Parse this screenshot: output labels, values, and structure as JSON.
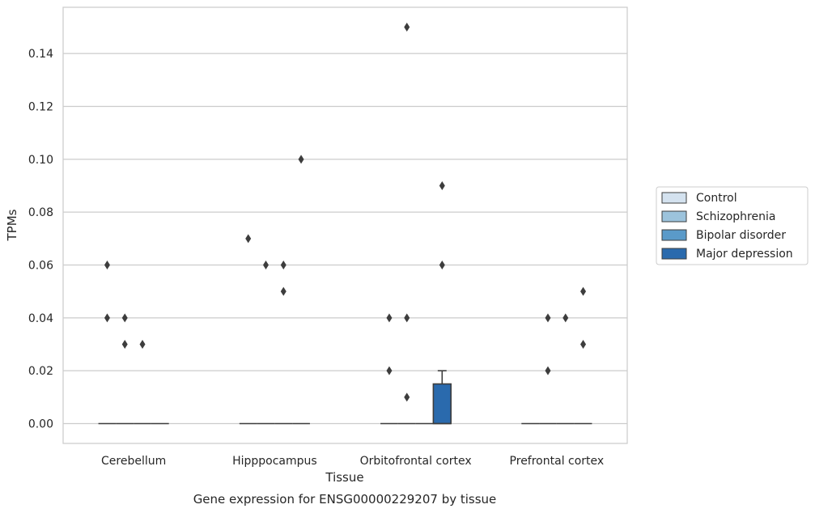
{
  "chart_data": {
    "type": "box",
    "xlabel": "Tissue",
    "ylabel": "TPMs",
    "caption": "Gene expression for ENSG00000229207 by tissue",
    "categories": [
      "Cerebellum",
      "Hipppocampus",
      "Orbitofrontal cortex",
      "Prefrontal cortex"
    ],
    "yticks": [
      "0.00",
      "0.02",
      "0.04",
      "0.06",
      "0.08",
      "0.10",
      "0.12",
      "0.14"
    ],
    "ylim": [
      -0.0075,
      0.1575
    ],
    "grid": "horizontal",
    "legend_position": "right",
    "series": [
      {
        "name": "Control",
        "color": "#d4e2ef",
        "boxes": [
          {
            "q1": 0,
            "median": 0,
            "q3": 0,
            "whisker_low": 0,
            "whisker_high": 0,
            "outliers": [
              0.06,
              0.04
            ]
          },
          {
            "q1": 0,
            "median": 0,
            "q3": 0,
            "whisker_low": 0,
            "whisker_high": 0,
            "outliers": [
              0.07
            ]
          },
          {
            "q1": 0,
            "median": 0,
            "q3": 0,
            "whisker_low": 0,
            "whisker_high": 0,
            "outliers": [
              0.04,
              0.02
            ]
          },
          {
            "q1": 0,
            "median": 0,
            "q3": 0,
            "whisker_low": 0,
            "whisker_high": 0,
            "outliers": []
          }
        ]
      },
      {
        "name": "Schizophrenia",
        "color": "#9cc3dc",
        "boxes": [
          {
            "q1": 0,
            "median": 0,
            "q3": 0,
            "whisker_low": 0,
            "whisker_high": 0,
            "outliers": [
              0.04,
              0.03
            ]
          },
          {
            "q1": 0,
            "median": 0,
            "q3": 0,
            "whisker_low": 0,
            "whisker_high": 0,
            "outliers": [
              0.06
            ]
          },
          {
            "q1": 0,
            "median": 0,
            "q3": 0,
            "whisker_low": 0,
            "whisker_high": 0,
            "outliers": [
              0.15,
              0.04,
              0.01
            ]
          },
          {
            "q1": 0,
            "median": 0,
            "q3": 0,
            "whisker_low": 0,
            "whisker_high": 0,
            "outliers": [
              0.04,
              0.02
            ]
          }
        ]
      },
      {
        "name": "Bipolar disorder",
        "color": "#5a9ac9",
        "boxes": [
          {
            "q1": 0,
            "median": 0,
            "q3": 0,
            "whisker_low": 0,
            "whisker_high": 0,
            "outliers": [
              0.03
            ]
          },
          {
            "q1": 0,
            "median": 0,
            "q3": 0,
            "whisker_low": 0,
            "whisker_high": 0,
            "outliers": [
              0.06,
              0.05
            ]
          },
          {
            "q1": 0,
            "median": 0,
            "q3": 0,
            "whisker_low": 0,
            "whisker_high": 0,
            "outliers": []
          },
          {
            "q1": 0,
            "median": 0,
            "q3": 0,
            "whisker_low": 0,
            "whisker_high": 0,
            "outliers": [
              0.04
            ]
          }
        ]
      },
      {
        "name": "Major depression",
        "color": "#2a6aad",
        "boxes": [
          {
            "q1": 0,
            "median": 0,
            "q3": 0,
            "whisker_low": 0,
            "whisker_high": 0,
            "outliers": []
          },
          {
            "q1": 0,
            "median": 0,
            "q3": 0,
            "whisker_low": 0,
            "whisker_high": 0,
            "outliers": [
              0.1
            ]
          },
          {
            "q1": 0,
            "median": 0,
            "q3": 0.015,
            "whisker_low": 0,
            "whisker_high": 0.02,
            "outliers": [
              0.09,
              0.06
            ]
          },
          {
            "q1": 0,
            "median": 0,
            "q3": 0,
            "whisker_low": 0,
            "whisker_high": 0,
            "outliers": [
              0.05,
              0.03
            ]
          }
        ]
      }
    ]
  }
}
